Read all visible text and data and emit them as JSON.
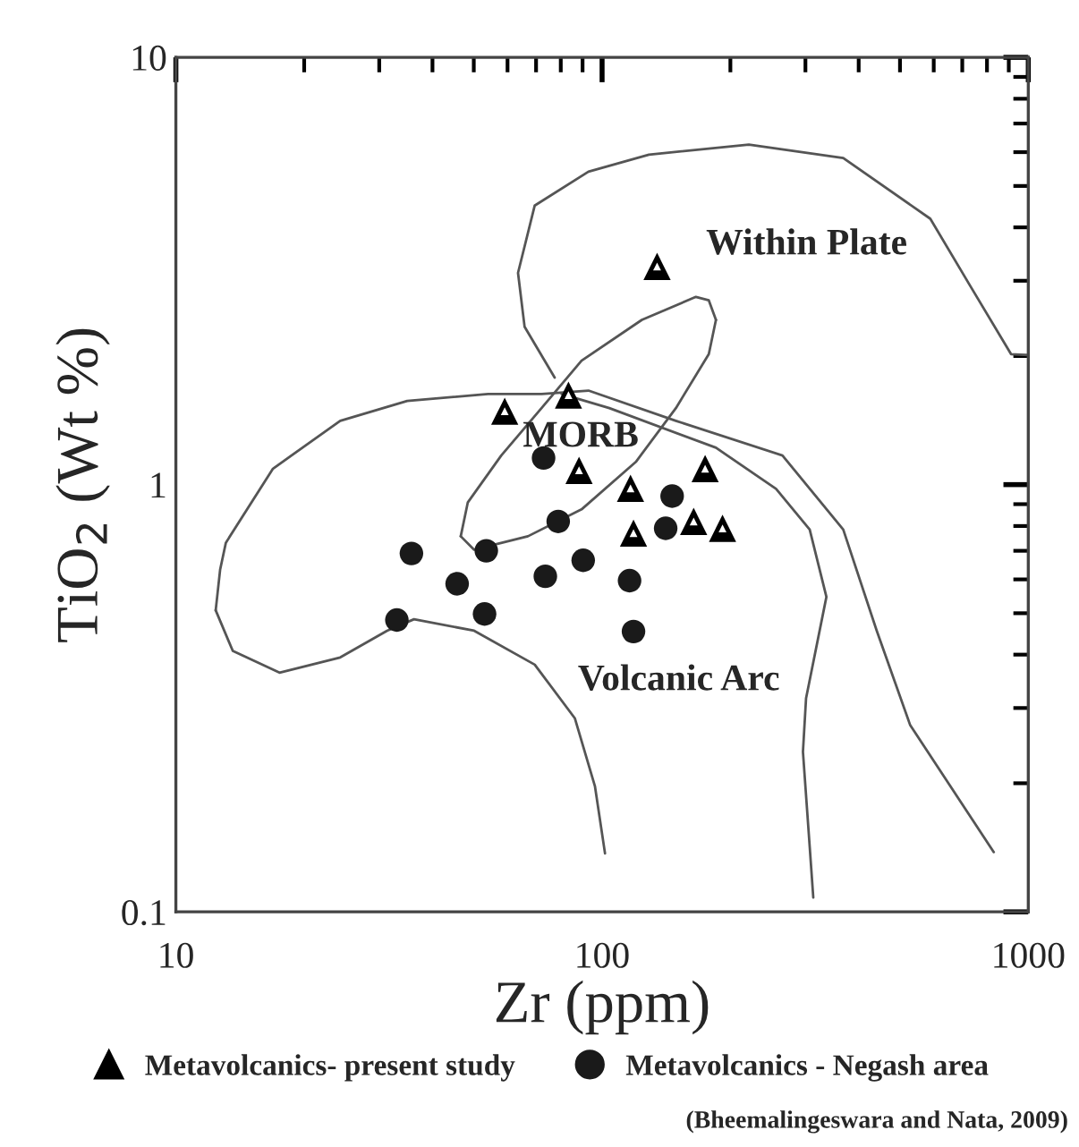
{
  "chart_data": {
    "type": "scatter",
    "xlabel": "Zr (ppm)",
    "ylabel": "TiO$_{2}$ (Wt %)",
    "log": "xy",
    "xlim": [
      10,
      1000
    ],
    "ylim": [
      0.1,
      10
    ],
    "xticks": [
      10,
      100,
      1000
    ],
    "yticks": [
      0.1,
      1,
      10
    ],
    "grid": false,
    "legend": "bottom",
    "series": [
      {
        "type": "line",
        "color": "#555555",
        "x": [
          77.4,
          65.8,
          63.5,
          69.5,
          92.9,
          128.8,
          221,
          368,
          589,
          732,
          911,
          1000
        ],
        "values": [
          1.78,
          2.34,
          3.13,
          4.5,
          5.4,
          5.92,
          6.25,
          5.81,
          4.19,
          2.91,
          2.02,
          2.01
        ]
      },
      {
        "type": "line",
        "color": "#555555",
        "x": [
          185,
          178,
          149,
          120,
          89.5,
          67,
          50.1,
          46.6
        ],
        "values": [
          2.43,
          2.02,
          1.51,
          1.13,
          0.875,
          0.757,
          0.704,
          0.757
        ]
      },
      {
        "type": "line",
        "color": "#555555",
        "x": [
          46.6,
          48.4,
          58,
          72.1,
          89.5,
          124,
          166,
          178,
          185
        ],
        "values": [
          0.757,
          0.908,
          1.17,
          1.51,
          1.95,
          2.43,
          2.75,
          2.7,
          2.43
        ]
      },
      {
        "type": "line",
        "color": "#555555",
        "x": [
          830,
          528,
          441,
          368,
          265,
          149,
          92.9,
          72.1,
          54,
          34.9,
          24.3,
          16.9,
          13.1,
          12.7,
          12.4
        ],
        "values": [
          0.138,
          0.274,
          0.455,
          0.785,
          1.17,
          1.41,
          1.66,
          1.63,
          1.63,
          1.57,
          1.41,
          1.09,
          0.731,
          0.632,
          0.508
        ]
      },
      {
        "type": "line",
        "color": "#555555",
        "x": [
          12.4,
          13.6,
          17.5,
          24.3,
          31.3,
          36.2,
          50.1,
          69.5,
          86.3,
          96.2,
          101.6
        ],
        "values": [
          0.508,
          0.408,
          0.363,
          0.394,
          0.455,
          0.484,
          0.455,
          0.379,
          0.284,
          0.197,
          0.137
        ]
      },
      {
        "type": "line",
        "color": "#555555",
        "x": [
          313,
          307,
          296,
          301,
          336,
          307,
          256,
          185,
          104,
          80.4
        ],
        "values": [
          0.108,
          0.142,
          0.237,
          0.316,
          0.546,
          0.785,
          0.977,
          1.22,
          1.51,
          1.63
        ]
      },
      {
        "name": "Metavolcanics- present study",
        "marker": "triangle",
        "color": "#000000",
        "x": [
          134.6,
          59.1,
          83.4,
          88.3,
          116.6,
          174.5,
          118.5,
          164,
          191.7
        ],
        "values": [
          3.24,
          1.485,
          1.62,
          1.08,
          0.98,
          1.09,
          0.77,
          0.82,
          0.79
        ]
      },
      {
        "name": "Metavolcanics - Negash area",
        "marker": "circle",
        "color": "#1a1a1a",
        "x": [
          72.9,
          146,
          141,
          78.9,
          53.5,
          35.7,
          45.7,
          73.6,
          90.3,
          116,
          53,
          33,
          118.5
        ],
        "values": [
          1.154,
          0.94,
          0.79,
          0.82,
          0.7,
          0.69,
          0.586,
          0.61,
          0.665,
          0.596,
          0.498,
          0.482,
          0.453
        ]
      }
    ],
    "annotations": [
      "Within Plate",
      "MORB",
      "Volcanic Arc",
      "(Bheemalingeswara and Nata, 2009)"
    ]
  }
}
